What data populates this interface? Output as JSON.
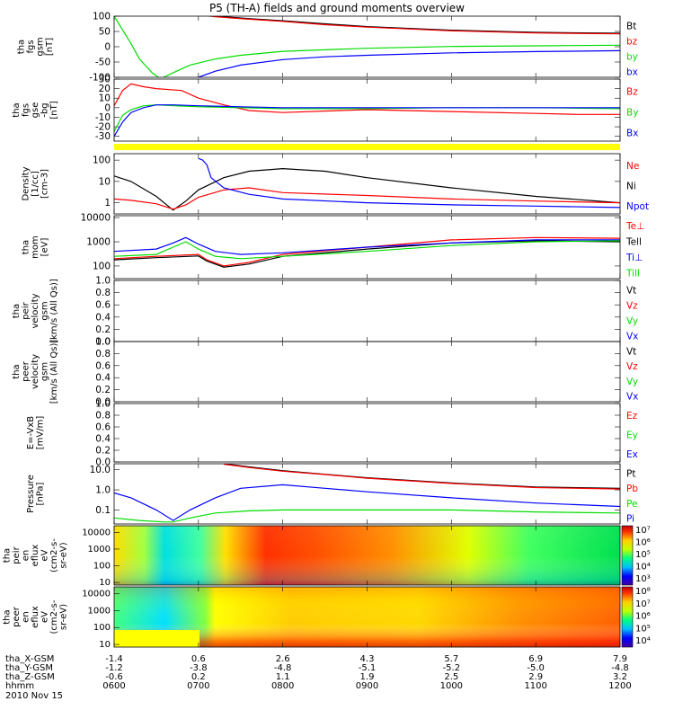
{
  "title": "P5 (TH-A) fields and ground moments overview",
  "colors": {
    "black": "#000000",
    "red": "#ff0000",
    "green": "#00dd00",
    "blue": "#0000ff",
    "yellow": "#ffff00"
  },
  "chart_data": [
    {
      "type": "line",
      "panel": "fgs-gsm",
      "ylabel_lines": [
        "tha",
        "fgs",
        "gsm",
        "[nT]"
      ],
      "yticks": [
        "100",
        "50",
        "0",
        "-50",
        "-100"
      ],
      "ylim": [
        -100,
        100
      ],
      "legend": [
        {
          "text": "Bt",
          "color": "black"
        },
        {
          "text": "bz",
          "color": "red"
        },
        {
          "text": "by",
          "color": "green"
        },
        {
          "text": "bx",
          "color": "blue"
        }
      ],
      "series": [
        {
          "name": "Bt",
          "color": "black",
          "x": [
            0.9,
            1.2,
            1.6,
            2.0,
            2.5,
            3.0,
            4.0,
            5.0,
            6.0
          ],
          "y": [
            110,
            100,
            92,
            85,
            75,
            66,
            54,
            47,
            44
          ]
        },
        {
          "name": "bz",
          "color": "red",
          "x": [
            0.9,
            1.2,
            1.6,
            2.0,
            2.5,
            3.0,
            4.0,
            5.0,
            6.0
          ],
          "y": [
            108,
            98,
            90,
            83,
            72,
            64,
            52,
            45,
            42
          ]
        },
        {
          "name": "by",
          "color": "green",
          "x": [
            0.0,
            0.1,
            0.2,
            0.3,
            0.45,
            0.55,
            0.7,
            0.9,
            1.2,
            1.5,
            2.0,
            3.0,
            4.0,
            5.0,
            6.0
          ],
          "y": [
            100,
            55,
            10,
            -40,
            -85,
            -105,
            -85,
            -60,
            -40,
            -28,
            -15,
            -5,
            1,
            3,
            5
          ]
        },
        {
          "name": "bx",
          "color": "blue",
          "x": [
            0.85,
            1.0,
            1.2,
            1.5,
            2.0,
            2.5,
            3.0,
            4.0,
            5.0,
            6.0
          ],
          "y": [
            -110,
            -100,
            -80,
            -60,
            -42,
            -33,
            -28,
            -20,
            -16,
            -13
          ]
        }
      ]
    },
    {
      "type": "line",
      "panel": "fgs-gse",
      "ylabel_lines": [
        "tha",
        "fgs",
        "gse",
        "-bg",
        "[nT]"
      ],
      "yticks": [
        "30",
        "20",
        "10",
        "0",
        "-10",
        "-20",
        "-30"
      ],
      "ylim": [
        -35,
        30
      ],
      "legend": [
        {
          "text": "Bz",
          "color": "red"
        },
        {
          "text": "By",
          "color": "green"
        },
        {
          "text": "Bx",
          "color": "blue"
        }
      ],
      "series": [
        {
          "name": "Bz",
          "color": "red",
          "x": [
            0.0,
            0.1,
            0.2,
            0.35,
            0.5,
            0.8,
            1.0,
            1.3,
            1.6,
            2.0,
            3.0,
            4.0,
            5.0,
            5.5,
            6.0
          ],
          "y": [
            2,
            18,
            25,
            22,
            20,
            18,
            10,
            3,
            -3,
            -5,
            -2,
            -4,
            -6,
            -7,
            -7
          ]
        },
        {
          "name": "By",
          "color": "green",
          "x": [
            0.0,
            0.1,
            0.2,
            0.35,
            0.5,
            0.7,
            1.0,
            1.5,
            2.0,
            3.0,
            4.0,
            5.0,
            6.0
          ],
          "y": [
            -25,
            -8,
            -2,
            2,
            3,
            2,
            1,
            0,
            -1,
            -1,
            0,
            0,
            -1
          ]
        },
        {
          "name": "Bx",
          "color": "blue",
          "x": [
            0.0,
            0.1,
            0.2,
            0.35,
            0.5,
            0.7,
            1.0,
            1.5,
            2.0,
            3.0,
            4.0,
            5.0,
            6.0
          ],
          "y": [
            -30,
            -15,
            -5,
            0,
            3,
            3,
            2,
            1,
            0,
            0,
            0,
            0,
            0
          ]
        }
      ]
    },
    {
      "type": "line",
      "panel": "density",
      "log": true,
      "ylabel_lines": [
        "Density",
        "[1/cc]",
        "[cm-3]"
      ],
      "yticks": [
        "100",
        "10",
        "1"
      ],
      "ylim": [
        0.3,
        200
      ],
      "legend": [
        {
          "text": "Ne",
          "color": "red"
        },
        {
          "text": "Ni",
          "color": "black"
        },
        {
          "text": "Npot",
          "color": "blue"
        }
      ],
      "series": [
        {
          "name": "Ni",
          "color": "black",
          "x": [
            0.0,
            0.2,
            0.5,
            0.7,
            0.85,
            1.0,
            1.3,
            1.6,
            2.0,
            2.5,
            3.0,
            4.0,
            5.0,
            6.0
          ],
          "y": [
            18,
            10,
            2.0,
            0.45,
            1.2,
            4,
            15,
            30,
            40,
            30,
            15,
            5,
            2,
            1.0
          ]
        },
        {
          "name": "Ne",
          "color": "red",
          "x": [
            0.0,
            0.2,
            0.5,
            0.7,
            0.85,
            1.0,
            1.3,
            1.6,
            2.0,
            3.0,
            4.0,
            5.0,
            6.0
          ],
          "y": [
            1.5,
            1.3,
            0.9,
            0.5,
            0.8,
            1.8,
            4,
            5,
            3,
            2.2,
            1.5,
            1.2,
            1.0
          ]
        },
        {
          "name": "Npot",
          "color": "blue",
          "x": [
            1.0,
            1.05,
            1.1,
            1.15,
            1.3,
            1.6,
            2.0,
            3.0,
            4.0,
            5.0,
            6.0
          ],
          "y": [
            120,
            100,
            60,
            15,
            5,
            2.5,
            1.5,
            1.0,
            0.8,
            0.7,
            0.6
          ]
        }
      ]
    },
    {
      "type": "line",
      "panel": "temperature",
      "log": true,
      "ylabel_lines": [
        "tha",
        "mom",
        "[eV]"
      ],
      "yticks": [
        "10000",
        "1000",
        "100"
      ],
      "ylim": [
        30,
        12000
      ],
      "legend": [
        {
          "text": "Te⊥",
          "color": "red"
        },
        {
          "text": "Tell",
          "color": "black"
        },
        {
          "text": "Ti⊥",
          "color": "blue"
        },
        {
          "text": "Till",
          "color": "green"
        }
      ],
      "series": [
        {
          "name": "Te⊥",
          "color": "red",
          "x": [
            0.0,
            0.5,
            1.0,
            1.1,
            1.3,
            1.6,
            2.0,
            3.0,
            4.0,
            5.0,
            6.0
          ],
          "y": [
            200,
            250,
            300,
            180,
            100,
            140,
            300,
            600,
            1200,
            1500,
            1400
          ]
        },
        {
          "name": "Tell",
          "color": "black",
          "x": [
            0.0,
            0.5,
            1.0,
            1.1,
            1.3,
            1.6,
            2.0,
            3.0,
            4.0,
            5.0,
            6.0
          ],
          "y": [
            180,
            220,
            260,
            160,
            90,
            120,
            250,
            500,
            900,
            1100,
            1000
          ]
        },
        {
          "name": "Ti⊥",
          "color": "blue",
          "x": [
            0.0,
            0.5,
            0.7,
            0.85,
            1.0,
            1.2,
            1.5,
            2.0,
            3.0,
            4.0,
            5.0,
            6.0
          ],
          "y": [
            400,
            500,
            900,
            1500,
            800,
            400,
            300,
            350,
            600,
            900,
            1200,
            1200
          ]
        },
        {
          "name": "Till",
          "color": "green",
          "x": [
            0.0,
            0.5,
            0.7,
            0.85,
            1.0,
            1.2,
            1.5,
            2.0,
            3.0,
            4.0,
            5.0,
            6.0
          ],
          "y": [
            250,
            300,
            600,
            1000,
            500,
            250,
            200,
            250,
            400,
            700,
            1000,
            1100
          ]
        }
      ]
    },
    {
      "type": "line",
      "panel": "ion-velocity",
      "ylabel_lines": [
        "tha",
        "peir",
        "velocity",
        "gsm",
        "[km/s (All Qs)]"
      ],
      "yticks": [
        "1.0",
        "0.8",
        "0.6",
        "0.4",
        "0.2",
        "0.0"
      ],
      "ylim": [
        0,
        1
      ],
      "legend": [
        {
          "text": "Vt",
          "color": "black"
        },
        {
          "text": "Vz",
          "color": "red"
        },
        {
          "text": "Vy",
          "color": "green"
        },
        {
          "text": "Vx",
          "color": "blue"
        }
      ],
      "series": []
    },
    {
      "type": "line",
      "panel": "electron-velocity",
      "ylabel_lines": [
        "tha",
        "peer",
        "velocity",
        "gsm",
        "[km/s (All Qs)]"
      ],
      "yticks": [
        "1.0",
        "0.8",
        "0.6",
        "0.4",
        "0.2",
        "0.0"
      ],
      "ylim": [
        0,
        1
      ],
      "legend": [
        {
          "text": "Vt",
          "color": "black"
        },
        {
          "text": "Vz",
          "color": "red"
        },
        {
          "text": "Vy",
          "color": "green"
        },
        {
          "text": "Vx",
          "color": "blue"
        }
      ],
      "series": []
    },
    {
      "type": "line",
      "panel": "efield",
      "ylabel_lines": [
        "E=-VxB",
        "[mV/m]"
      ],
      "yticks": [
        "1.0",
        "0.8",
        "0.6",
        "0.4",
        "0.2",
        "0.0"
      ],
      "ylim": [
        0,
        1
      ],
      "legend": [
        {
          "text": "Ez",
          "color": "red"
        },
        {
          "text": "Ey",
          "color": "green"
        },
        {
          "text": "Ex",
          "color": "blue"
        }
      ],
      "series": []
    },
    {
      "type": "line",
      "panel": "pressure",
      "log": true,
      "ylabel_lines": [
        "Pressure",
        "[nPa]"
      ],
      "yticks": [
        "10.0",
        "1.0",
        "0.1"
      ],
      "ylim": [
        0.02,
        20
      ],
      "legend": [
        {
          "text": "Pt",
          "color": "black"
        },
        {
          "text": "Pb",
          "color": "red"
        },
        {
          "text": "Pe",
          "color": "green"
        },
        {
          "text": "Pi",
          "color": "blue"
        }
      ],
      "series": [
        {
          "name": "Pt",
          "color": "black",
          "x": [
            1.3,
            1.6,
            2.0,
            2.5,
            3.0,
            4.0,
            5.0,
            6.0
          ],
          "y": [
            20,
            14,
            9,
            6,
            4,
            2.2,
            1.4,
            1.2
          ]
        },
        {
          "name": "Pb",
          "color": "red",
          "x": [
            1.3,
            1.6,
            2.0,
            2.5,
            3.0,
            4.0,
            5.0,
            6.0
          ],
          "y": [
            19,
            13,
            8.5,
            5.8,
            3.8,
            2.1,
            1.3,
            1.1
          ]
        },
        {
          "name": "Pi",
          "color": "blue",
          "x": [
            0.0,
            0.2,
            0.5,
            0.7,
            0.9,
            1.2,
            1.5,
            2.0,
            2.5,
            3.0,
            4.0,
            5.0,
            6.0
          ],
          "y": [
            0.7,
            0.4,
            0.1,
            0.03,
            0.1,
            0.4,
            1.2,
            1.8,
            1.2,
            0.8,
            0.4,
            0.22,
            0.15
          ]
        },
        {
          "name": "Pe",
          "color": "green",
          "x": [
            0.0,
            0.3,
            0.6,
            0.7,
            0.9,
            1.2,
            1.6,
            2.0,
            3.0,
            4.0,
            5.0,
            6.0
          ],
          "y": [
            0.04,
            0.03,
            0.025,
            0.025,
            0.04,
            0.07,
            0.09,
            0.1,
            0.1,
            0.1,
            0.08,
            0.07
          ]
        }
      ]
    },
    {
      "type": "heatmap",
      "panel": "ion-spectrogram",
      "ylabel_lines": [
        "tha",
        "peir",
        "en",
        "eflux",
        "eV",
        "(cm2-s-",
        "sr-eV)"
      ],
      "yticks": [
        "10000",
        "1000",
        "100",
        "10"
      ],
      "colorbar_ticks": [
        "10⁷",
        "10⁶",
        "10⁵",
        "10⁴",
        "10³"
      ]
    },
    {
      "type": "heatmap",
      "panel": "electron-spectrogram",
      "ylabel_lines": [
        "tha",
        "peer",
        "en",
        "eflux",
        "eV",
        "(cm2-s-",
        "sr-eV)"
      ],
      "yticks": [
        "10000",
        "1000",
        "100",
        "10"
      ],
      "colorbar_ticks": [
        "10⁸",
        "10⁷",
        "10⁶",
        "10⁵",
        "10⁴"
      ]
    }
  ],
  "x_axis": {
    "rows": [
      {
        "label": "tha_X-GSM",
        "values": [
          "-1.4",
          "0.6",
          "2.6",
          "4.3",
          "5.7",
          "6.9",
          "7.9"
        ]
      },
      {
        "label": "tha_Y-GSM",
        "values": [
          "-1.2",
          "-3.8",
          "-4.8",
          "-5.1",
          "-5.2",
          "-5.0",
          "-4.8"
        ]
      },
      {
        "label": "tha_Z-GSM",
        "values": [
          "-0.6",
          "0.2",
          "1.1",
          "1.9",
          "2.5",
          "2.9",
          "3.2"
        ]
      },
      {
        "label": "hhmm",
        "values": [
          "0600",
          "0700",
          "0800",
          "0900",
          "1000",
          "1100",
          "1200"
        ]
      }
    ],
    "date": "2010 Nov 15"
  }
}
